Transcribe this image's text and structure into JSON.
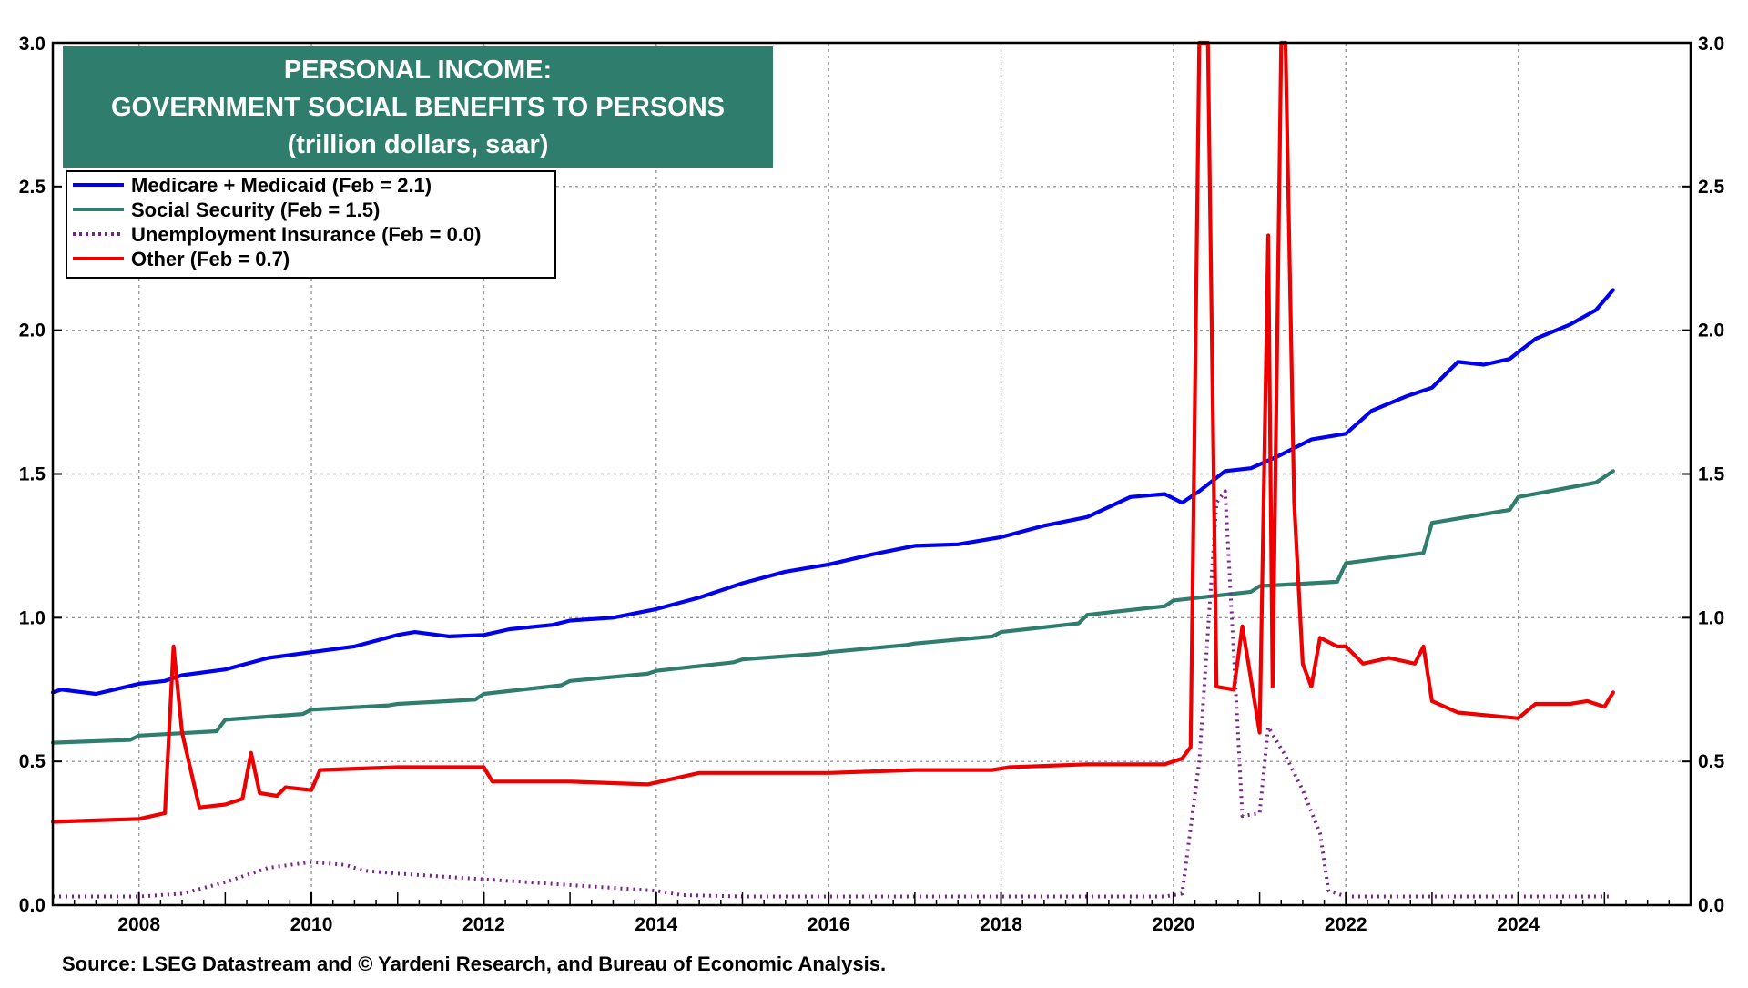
{
  "chart_data": {
    "type": "line",
    "title_lines": [
      "PERSONAL INCOME:",
      "GOVERNMENT SOCIAL BENEFITS TO PERSONS",
      "(trillion dollars, saar)"
    ],
    "source": "Source: LSEG Datastream and © Yardeni Research, and Bureau of Economic Analysis.",
    "xlim": [
      2007.0,
      2026.0
    ],
    "ylim": [
      0.0,
      3.0
    ],
    "x_ticks": [
      "2008",
      "2010",
      "2012",
      "2014",
      "2016",
      "2018",
      "2020",
      "2022",
      "2024"
    ],
    "y_ticks": [
      "0.0",
      "0.5",
      "1.0",
      "1.5",
      "2.0",
      "2.5",
      "3.0"
    ],
    "grid": true,
    "legend_position": "top-left",
    "series": [
      {
        "name": "Medicare + Medicaid (Feb = 2.1)",
        "color": "#0000ee",
        "style": "solid",
        "points": [
          [
            2007.0,
            0.74
          ],
          [
            2007.1,
            0.75
          ],
          [
            2007.5,
            0.735
          ],
          [
            2008.0,
            0.77
          ],
          [
            2008.3,
            0.78
          ],
          [
            2008.5,
            0.8
          ],
          [
            2009.0,
            0.82
          ],
          [
            2009.5,
            0.86
          ],
          [
            2010.0,
            0.88
          ],
          [
            2010.5,
            0.9
          ],
          [
            2011.0,
            0.94
          ],
          [
            2011.2,
            0.95
          ],
          [
            2011.6,
            0.935
          ],
          [
            2012.0,
            0.94
          ],
          [
            2012.3,
            0.96
          ],
          [
            2012.8,
            0.975
          ],
          [
            2013.0,
            0.99
          ],
          [
            2013.5,
            1.0
          ],
          [
            2014.0,
            1.03
          ],
          [
            2014.5,
            1.07
          ],
          [
            2015.0,
            1.12
          ],
          [
            2015.5,
            1.16
          ],
          [
            2016.0,
            1.185
          ],
          [
            2016.5,
            1.22
          ],
          [
            2017.0,
            1.25
          ],
          [
            2017.5,
            1.255
          ],
          [
            2018.0,
            1.28
          ],
          [
            2018.5,
            1.32
          ],
          [
            2019.0,
            1.35
          ],
          [
            2019.5,
            1.42
          ],
          [
            2019.9,
            1.43
          ],
          [
            2020.1,
            1.4
          ],
          [
            2020.3,
            1.44
          ],
          [
            2020.6,
            1.51
          ],
          [
            2020.9,
            1.52
          ],
          [
            2021.2,
            1.56
          ],
          [
            2021.6,
            1.62
          ],
          [
            2022.0,
            1.64
          ],
          [
            2022.3,
            1.72
          ],
          [
            2022.7,
            1.77
          ],
          [
            2023.0,
            1.8
          ],
          [
            2023.3,
            1.89
          ],
          [
            2023.6,
            1.88
          ],
          [
            2023.9,
            1.9
          ],
          [
            2024.2,
            1.97
          ],
          [
            2024.6,
            2.02
          ],
          [
            2024.9,
            2.07
          ],
          [
            2025.1,
            2.14
          ]
        ]
      },
      {
        "name": "Social Security (Feb = 1.5)",
        "color": "#2e7d6d",
        "style": "solid",
        "points": [
          [
            2007.0,
            0.565
          ],
          [
            2007.9,
            0.575
          ],
          [
            2008.0,
            0.59
          ],
          [
            2008.9,
            0.605
          ],
          [
            2009.0,
            0.645
          ],
          [
            2009.9,
            0.665
          ],
          [
            2010.0,
            0.68
          ],
          [
            2010.9,
            0.695
          ],
          [
            2011.0,
            0.7
          ],
          [
            2011.9,
            0.715
          ],
          [
            2012.0,
            0.735
          ],
          [
            2012.9,
            0.765
          ],
          [
            2013.0,
            0.78
          ],
          [
            2013.9,
            0.805
          ],
          [
            2014.0,
            0.815
          ],
          [
            2014.9,
            0.845
          ],
          [
            2015.0,
            0.855
          ],
          [
            2015.9,
            0.875
          ],
          [
            2016.0,
            0.88
          ],
          [
            2016.9,
            0.905
          ],
          [
            2017.0,
            0.91
          ],
          [
            2017.9,
            0.935
          ],
          [
            2018.0,
            0.95
          ],
          [
            2018.9,
            0.98
          ],
          [
            2019.0,
            1.01
          ],
          [
            2019.9,
            1.04
          ],
          [
            2020.0,
            1.06
          ],
          [
            2020.9,
            1.09
          ],
          [
            2021.0,
            1.11
          ],
          [
            2021.9,
            1.125
          ],
          [
            2022.0,
            1.19
          ],
          [
            2022.9,
            1.225
          ],
          [
            2023.0,
            1.33
          ],
          [
            2023.9,
            1.375
          ],
          [
            2024.0,
            1.42
          ],
          [
            2024.9,
            1.47
          ],
          [
            2025.0,
            1.49
          ],
          [
            2025.1,
            1.51
          ]
        ]
      },
      {
        "name": "Unemployment Insurance (Feb = 0.0)",
        "color": "#7b1f8f",
        "style": "dotted",
        "points": [
          [
            2007.0,
            0.03
          ],
          [
            2008.0,
            0.03
          ],
          [
            2008.5,
            0.04
          ],
          [
            2009.0,
            0.08
          ],
          [
            2009.5,
            0.13
          ],
          [
            2010.0,
            0.15
          ],
          [
            2010.4,
            0.14
          ],
          [
            2010.6,
            0.12
          ],
          [
            2011.0,
            0.11
          ],
          [
            2012.0,
            0.09
          ],
          [
            2013.0,
            0.07
          ],
          [
            2014.0,
            0.05
          ],
          [
            2014.3,
            0.035
          ],
          [
            2015.0,
            0.03
          ],
          [
            2016.0,
            0.03
          ],
          [
            2017.0,
            0.03
          ],
          [
            2018.0,
            0.03
          ],
          [
            2019.0,
            0.03
          ],
          [
            2019.9,
            0.03
          ],
          [
            2020.1,
            0.04
          ],
          [
            2020.3,
            0.5
          ],
          [
            2020.5,
            1.4
          ],
          [
            2020.6,
            1.44
          ],
          [
            2020.8,
            0.31
          ],
          [
            2021.0,
            0.32
          ],
          [
            2021.1,
            0.62
          ],
          [
            2021.3,
            0.52
          ],
          [
            2021.5,
            0.4
          ],
          [
            2021.7,
            0.25
          ],
          [
            2021.8,
            0.05
          ],
          [
            2022.0,
            0.03
          ],
          [
            2023.0,
            0.03
          ],
          [
            2024.0,
            0.03
          ],
          [
            2025.1,
            0.03
          ]
        ]
      },
      {
        "name": "Other (Feb = 0.7)",
        "color": "#ee0000",
        "style": "solid",
        "points": [
          [
            2007.0,
            0.29
          ],
          [
            2008.0,
            0.3
          ],
          [
            2008.3,
            0.32
          ],
          [
            2008.4,
            0.9
          ],
          [
            2008.5,
            0.6
          ],
          [
            2008.7,
            0.34
          ],
          [
            2009.0,
            0.35
          ],
          [
            2009.2,
            0.37
          ],
          [
            2009.3,
            0.53
          ],
          [
            2009.4,
            0.39
          ],
          [
            2009.6,
            0.38
          ],
          [
            2009.7,
            0.41
          ],
          [
            2010.0,
            0.4
          ],
          [
            2010.1,
            0.47
          ],
          [
            2011.0,
            0.48
          ],
          [
            2012.0,
            0.48
          ],
          [
            2012.1,
            0.43
          ],
          [
            2013.0,
            0.43
          ],
          [
            2013.9,
            0.42
          ],
          [
            2014.5,
            0.46
          ],
          [
            2016.0,
            0.46
          ],
          [
            2017.0,
            0.47
          ],
          [
            2017.9,
            0.47
          ],
          [
            2018.1,
            0.48
          ],
          [
            2019.0,
            0.49
          ],
          [
            2019.9,
            0.49
          ],
          [
            2020.1,
            0.51
          ],
          [
            2020.2,
            0.55
          ],
          [
            2020.3,
            3.0
          ],
          [
            2020.4,
            3.0
          ],
          [
            2020.5,
            0.76
          ],
          [
            2020.7,
            0.75
          ],
          [
            2020.8,
            0.97
          ],
          [
            2021.0,
            0.6
          ],
          [
            2021.1,
            2.33
          ],
          [
            2021.15,
            0.76
          ],
          [
            2021.25,
            3.0
          ],
          [
            2021.3,
            3.0
          ],
          [
            2021.4,
            1.4
          ],
          [
            2021.5,
            0.84
          ],
          [
            2021.6,
            0.76
          ],
          [
            2021.7,
            0.93
          ],
          [
            2021.9,
            0.9
          ],
          [
            2022.0,
            0.9
          ],
          [
            2022.2,
            0.84
          ],
          [
            2022.5,
            0.86
          ],
          [
            2022.8,
            0.84
          ],
          [
            2022.9,
            0.9
          ],
          [
            2023.0,
            0.71
          ],
          [
            2023.3,
            0.67
          ],
          [
            2024.0,
            0.65
          ],
          [
            2024.2,
            0.7
          ],
          [
            2024.6,
            0.7
          ],
          [
            2024.8,
            0.71
          ],
          [
            2025.0,
            0.69
          ],
          [
            2025.1,
            0.74
          ]
        ]
      }
    ]
  }
}
